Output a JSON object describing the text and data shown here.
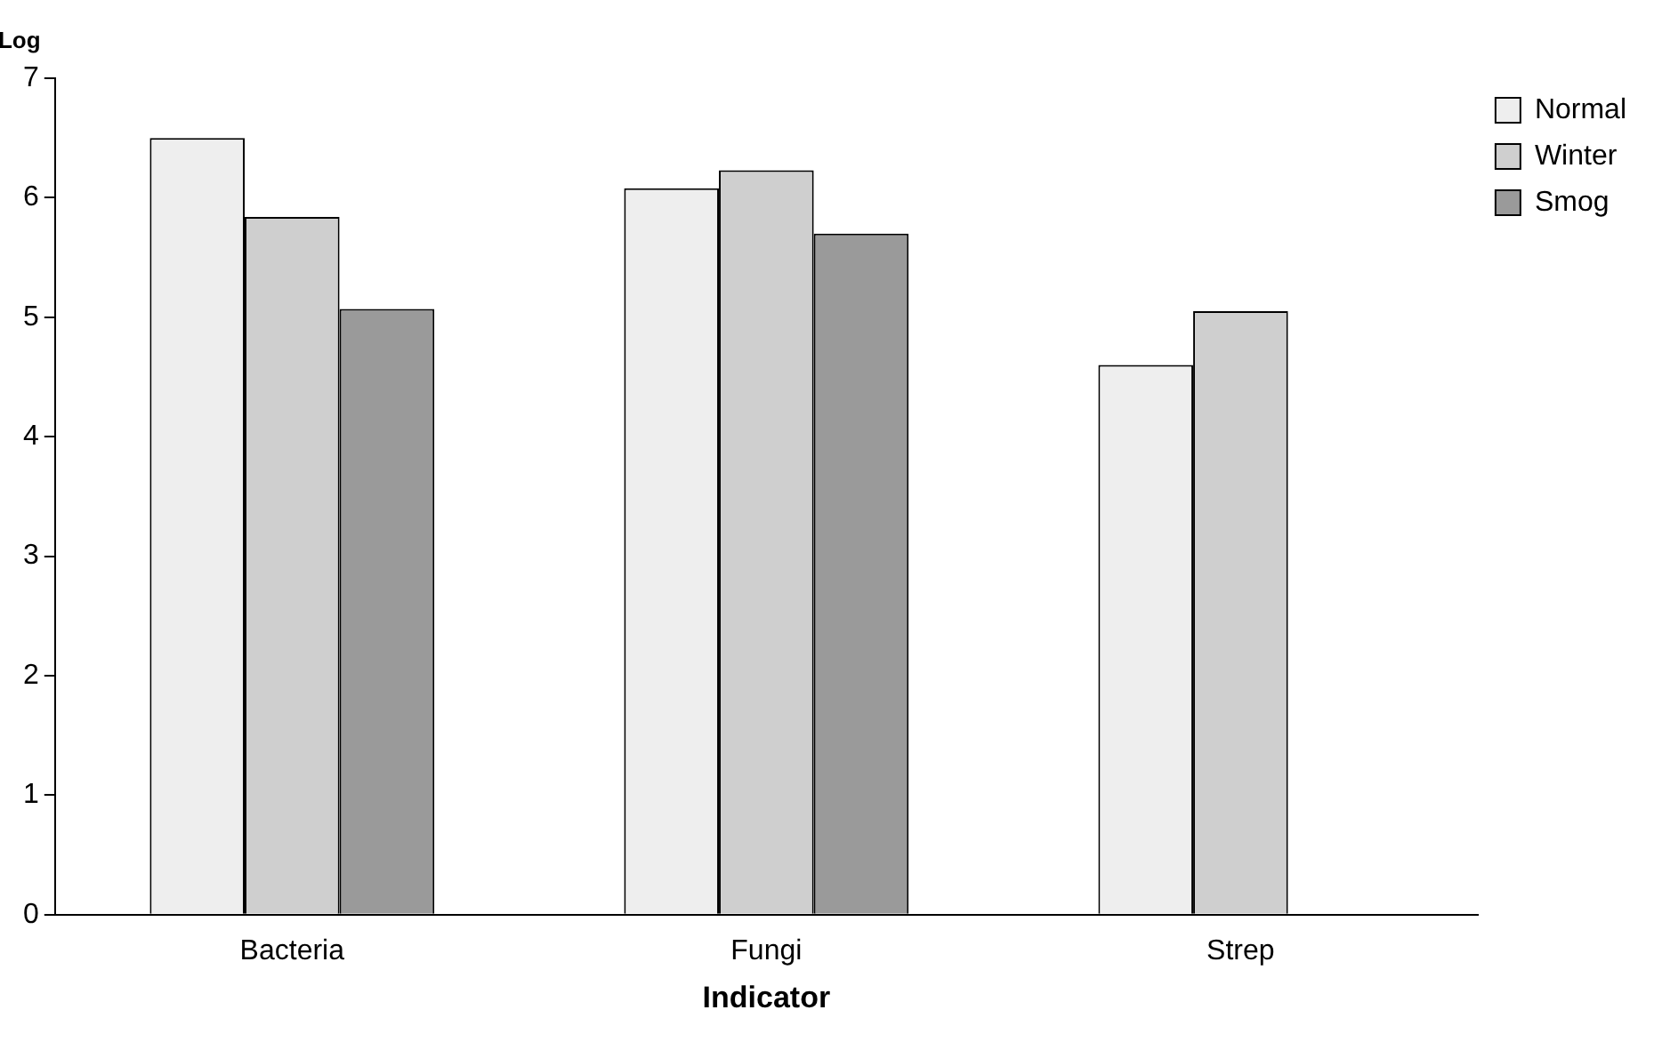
{
  "chart_data": {
    "type": "bar",
    "xlabel": "Indicator",
    "ylabel": "Log",
    "categories": [
      "Bacteria",
      "Fungi",
      "Strep"
    ],
    "series": [
      {
        "name": "Normal",
        "color": "#eeeeee",
        "values": [
          6.5,
          6.08,
          4.6
        ]
      },
      {
        "name": "Winter",
        "color": "#cfcfcf",
        "values": [
          5.84,
          6.23,
          5.05
        ]
      },
      {
        "name": "Smog",
        "color": "#9a9a9a",
        "values": [
          5.07,
          5.7,
          null
        ]
      }
    ],
    "ylim": [
      0,
      7
    ],
    "yticks": [
      0,
      1,
      2,
      3,
      4,
      5,
      6,
      7
    ],
    "grid": false,
    "legend": "top right"
  }
}
